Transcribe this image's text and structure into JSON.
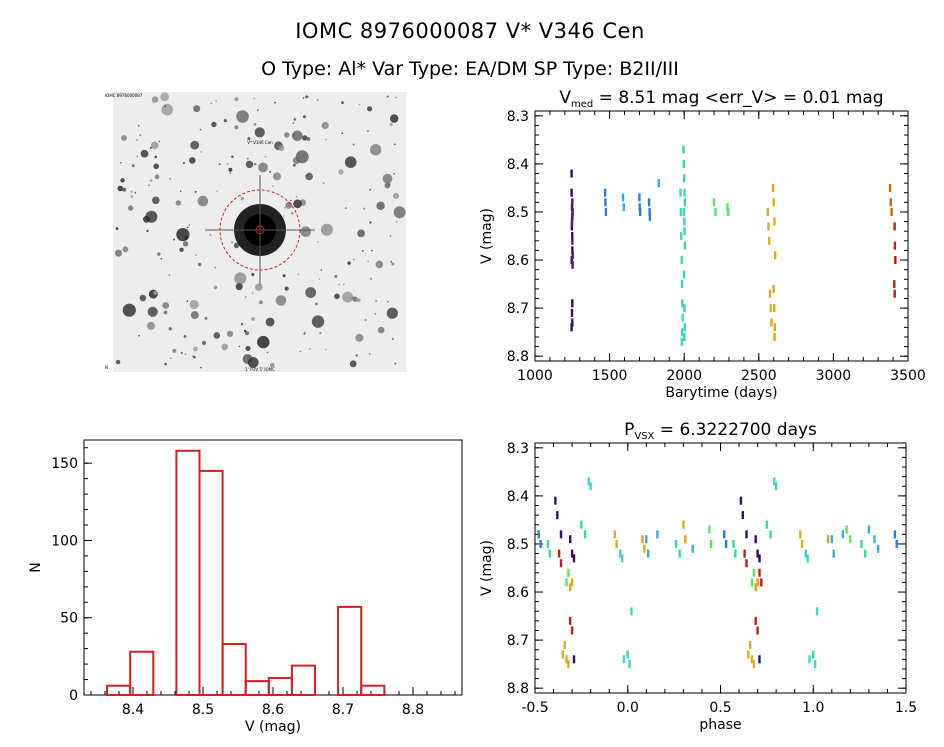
{
  "header": {
    "title_line1": "IOMC 8976000087    V* V346 Cen",
    "title_line2": "O Type: Al*  Var Type: EA/DM  SP Type: B2II/III"
  },
  "colors": {
    "axis": "#000000",
    "histogram": "#d42020",
    "circle": "#d42020",
    "epochs": [
      "#3a0a6b",
      "#4b1a8a",
      "#2a7fd6",
      "#2fb0e8",
      "#3dd6c8",
      "#2ee0a0",
      "#55e85a",
      "#9ee83a",
      "#d9b020",
      "#f0a010",
      "#e06010",
      "#c81818"
    ]
  },
  "chart_data": [
    {
      "id": "image",
      "type": "image",
      "description_labels": {
        "corner_top_left": "IOMC 8976000087",
        "center_top": "V* V346 Cen",
        "bottom_left": "N",
        "bottom_center": "1' FOV 5' IOMC"
      }
    },
    {
      "id": "lightcurve",
      "type": "scatter",
      "title": "V_med = 8.51 mag <err_V> = 0.01 mag",
      "title_main": "V",
      "title_sub": "med",
      "title_rest": " = 8.51 mag <err_V> = 0.01 mag",
      "xlabel": "Barytime (days)",
      "ylabel": "V (mag)",
      "xlim": [
        1000,
        3500
      ],
      "ylim": [
        8.81,
        8.29
      ],
      "xticks": [
        1000,
        1500,
        2000,
        2500,
        3000,
        3500
      ],
      "yticks": [
        8.3,
        8.4,
        8.5,
        8.6,
        8.7,
        8.8
      ],
      "series": [
        {
          "name": "epoch1",
          "color_index": 0,
          "points": [
            [
              1245,
              8.42
            ],
            [
              1245,
              8.46
            ],
            [
              1248,
              8.49
            ],
            [
              1250,
              8.51
            ],
            [
              1247,
              8.53
            ],
            [
              1249,
              8.55
            ],
            [
              1251,
              8.58
            ],
            [
              1246,
              8.6
            ],
            [
              1250,
              8.69
            ],
            [
              1248,
              8.71
            ],
            [
              1250,
              8.73
            ],
            [
              1245,
              8.74
            ]
          ]
        },
        {
          "name": "epoch2",
          "color_index": 1,
          "points": [
            [
              1250,
              8.48
            ],
            [
              1252,
              8.5
            ],
            [
              1248,
              8.52
            ],
            [
              1251,
              8.56
            ],
            [
              1253,
              8.59
            ],
            [
              1252,
              8.61
            ]
          ]
        },
        {
          "name": "epoch3",
          "color_index": 2,
          "points": [
            [
              1470,
              8.46
            ],
            [
              1472,
              8.48
            ],
            [
              1475,
              8.5
            ],
            [
              1700,
              8.47
            ],
            [
              1702,
              8.49
            ],
            [
              1705,
              8.5
            ],
            [
              1765,
              8.48
            ],
            [
              1768,
              8.5
            ],
            [
              1770,
              8.51
            ]
          ]
        },
        {
          "name": "epoch4",
          "color_index": 3,
          "points": [
            [
              1590,
              8.47
            ],
            [
              1595,
              8.49
            ],
            [
              1830,
              8.44
            ]
          ]
        },
        {
          "name": "epoch5",
          "color_index": 4,
          "points": [
            [
              1975,
              8.46
            ],
            [
              1978,
              8.5
            ],
            [
              1980,
              8.55
            ],
            [
              1983,
              8.6
            ],
            [
              1985,
              8.65
            ],
            [
              1987,
              8.69
            ],
            [
              1990,
              8.72
            ],
            [
              1986,
              8.75
            ],
            [
              1984,
              8.77
            ]
          ]
        },
        {
          "name": "epoch6",
          "color_index": 5,
          "points": [
            [
              1995,
              8.37
            ],
            [
              1997,
              8.4
            ],
            [
              2000,
              8.43
            ],
            [
              2002,
              8.46
            ],
            [
              2004,
              8.48
            ],
            [
              1998,
              8.5
            ],
            [
              2001,
              8.52
            ],
            [
              2003,
              8.54
            ],
            [
              2005,
              8.57
            ],
            [
              1999,
              8.63
            ],
            [
              2002,
              8.7
            ],
            [
              2004,
              8.74
            ],
            [
              2001,
              8.76
            ]
          ]
        },
        {
          "name": "epoch7",
          "color_index": 6,
          "points": [
            [
              2200,
              8.48
            ],
            [
              2210,
              8.5
            ],
            [
              2290,
              8.49
            ],
            [
              2295,
              8.5
            ]
          ]
        },
        {
          "name": "epoch8",
          "color_index": 8,
          "points": [
            [
              2560,
              8.5
            ],
            [
              2565,
              8.53
            ],
            [
              2570,
              8.56
            ],
            [
              2575,
              8.67
            ],
            [
              2580,
              8.7
            ],
            [
              2585,
              8.73
            ]
          ]
        },
        {
          "name": "epoch9",
          "color_index": 9,
          "points": [
            [
              2595,
              8.45
            ],
            [
              2600,
              8.48
            ],
            [
              2605,
              8.52
            ],
            [
              2610,
              8.59
            ],
            [
              2600,
              8.66
            ],
            [
              2603,
              8.7
            ],
            [
              2608,
              8.74
            ],
            [
              2605,
              8.76
            ]
          ]
        },
        {
          "name": "epoch10",
          "color_index": 10,
          "points": [
            [
              3380,
              8.45
            ],
            [
              3385,
              8.48
            ],
            [
              3390,
              8.5
            ]
          ]
        },
        {
          "name": "epoch11",
          "color_index": 11,
          "points": [
            [
              3410,
              8.53
            ],
            [
              3412,
              8.57
            ],
            [
              3415,
              8.6
            ],
            [
              3408,
              8.65
            ],
            [
              3411,
              8.67
            ]
          ]
        }
      ]
    },
    {
      "id": "histogram",
      "type": "bar",
      "xlabel": "V (mag)",
      "ylabel": "N",
      "xlim": [
        8.33,
        8.87
      ],
      "ylim": [
        0,
        165
      ],
      "xticks": [
        8.4,
        8.5,
        8.6,
        8.7,
        8.8
      ],
      "yticks": [
        0,
        50,
        100,
        150
      ],
      "bins": [
        {
          "left": 8.363,
          "right": 8.396,
          "value": 6
        },
        {
          "left": 8.396,
          "right": 8.429,
          "value": 28
        },
        {
          "left": 8.429,
          "right": 8.462,
          "value": 0
        },
        {
          "left": 8.462,
          "right": 8.495,
          "value": 158
        },
        {
          "left": 8.495,
          "right": 8.528,
          "value": 145
        },
        {
          "left": 8.528,
          "right": 8.561,
          "value": 33
        },
        {
          "left": 8.561,
          "right": 8.594,
          "value": 9
        },
        {
          "left": 8.594,
          "right": 8.627,
          "value": 11
        },
        {
          "left": 8.627,
          "right": 8.66,
          "value": 19
        },
        {
          "left": 8.66,
          "right": 8.693,
          "value": 0
        },
        {
          "left": 8.693,
          "right": 8.726,
          "value": 57
        },
        {
          "left": 8.726,
          "right": 8.759,
          "value": 6
        }
      ]
    },
    {
      "id": "phasecurve",
      "type": "scatter",
      "title": "P_VSX = 6.3222700 days",
      "title_main": "P",
      "title_sub": "VSX",
      "title_rest": " = 6.3222700 days",
      "xlabel": "phase",
      "ylabel": "V (mag)",
      "xlim": [
        -0.5,
        1.5
      ],
      "ylim": [
        8.81,
        8.29
      ],
      "xticks": [
        -0.5,
        0.0,
        0.5,
        1.0,
        1.5
      ],
      "yticks": [
        8.3,
        8.4,
        8.5,
        8.6,
        8.7,
        8.8
      ],
      "series": [
        {
          "name": "a",
          "color_index": 0,
          "points": [
            [
              -0.39,
              8.41
            ],
            [
              -0.38,
              8.44
            ],
            [
              -0.36,
              8.48
            ],
            [
              -0.31,
              8.49
            ],
            [
              -0.3,
              8.52
            ],
            [
              -0.29,
              8.53
            ],
            [
              0.61,
              8.41
            ],
            [
              0.62,
              8.44
            ],
            [
              0.64,
              8.48
            ],
            [
              0.69,
              8.49
            ],
            [
              0.7,
              8.52
            ],
            [
              0.71,
              8.53
            ],
            [
              -0.29,
              8.74
            ],
            [
              0.71,
              8.74
            ]
          ]
        },
        {
          "name": "b",
          "color_index": 2,
          "points": [
            [
              -0.48,
              8.48
            ],
            [
              -0.47,
              8.5
            ],
            [
              0.52,
              8.48
            ],
            [
              0.53,
              8.5
            ],
            [
              1.44,
              8.48
            ],
            [
              1.45,
              8.5
            ]
          ]
        },
        {
          "name": "c",
          "color_index": 4,
          "points": [
            [
              -0.21,
              8.37
            ],
            [
              -0.2,
              8.38
            ],
            [
              -0.04,
              8.52
            ],
            [
              -0.03,
              8.53
            ],
            [
              0.0,
              8.73
            ],
            [
              0.01,
              8.75
            ],
            [
              -0.02,
              8.74
            ],
            [
              0.02,
              8.64
            ],
            [
              0.79,
              8.37
            ],
            [
              0.8,
              8.38
            ],
            [
              0.96,
              8.52
            ],
            [
              0.97,
              8.53
            ],
            [
              1.0,
              8.73
            ],
            [
              1.01,
              8.75
            ],
            [
              0.98,
              8.74
            ],
            [
              1.02,
              8.64
            ]
          ]
        },
        {
          "name": "d",
          "color_index": 5,
          "points": [
            [
              -0.43,
              8.5
            ],
            [
              -0.42,
              8.52
            ],
            [
              -0.25,
              8.46
            ],
            [
              -0.23,
              8.48
            ],
            [
              0.26,
              8.5
            ],
            [
              0.28,
              8.52
            ],
            [
              0.57,
              8.5
            ],
            [
              0.58,
              8.52
            ],
            [
              0.75,
              8.46
            ],
            [
              0.77,
              8.48
            ],
            [
              1.26,
              8.5
            ],
            [
              1.28,
              8.52
            ]
          ]
        },
        {
          "name": "e",
          "color_index": 6,
          "points": [
            [
              -0.33,
              8.58
            ],
            [
              -0.32,
              8.56
            ],
            [
              0.44,
              8.47
            ],
            [
              0.45,
              8.5
            ],
            [
              0.67,
              8.58
            ],
            [
              0.68,
              8.56
            ],
            [
              1.18,
              8.47
            ],
            [
              1.2,
              8.49
            ]
          ]
        },
        {
          "name": "f",
          "color_index": 8,
          "points": [
            [
              -0.34,
              8.71
            ],
            [
              -0.33,
              8.74
            ],
            [
              -0.32,
              8.75
            ],
            [
              -0.35,
              8.73
            ],
            [
              0.66,
              8.71
            ],
            [
              0.67,
              8.74
            ],
            [
              0.68,
              8.75
            ],
            [
              0.65,
              8.73
            ],
            [
              -0.07,
              8.48
            ],
            [
              -0.06,
              8.5
            ],
            [
              0.93,
              8.48
            ],
            [
              0.94,
              8.5
            ]
          ]
        },
        {
          "name": "g",
          "color_index": 9,
          "points": [
            [
              -0.31,
              8.59
            ],
            [
              -0.3,
              8.58
            ],
            [
              0.3,
              8.46
            ],
            [
              0.31,
              8.49
            ],
            [
              0.69,
              8.59
            ],
            [
              0.7,
              8.58
            ],
            [
              0.08,
              8.49
            ],
            [
              0.09,
              8.51
            ],
            [
              1.08,
              8.49
            ]
          ]
        },
        {
          "name": "h",
          "color_index": 11,
          "points": [
            [
              -0.37,
              8.52
            ],
            [
              -0.36,
              8.54
            ],
            [
              -0.31,
              8.66
            ],
            [
              -0.3,
              8.68
            ],
            [
              0.63,
              8.52
            ],
            [
              0.64,
              8.54
            ],
            [
              0.69,
              8.66
            ],
            [
              0.7,
              8.68
            ],
            [
              0.71,
              8.56
            ],
            [
              0.72,
              8.58
            ]
          ]
        },
        {
          "name": "i",
          "color_index": 3,
          "points": [
            [
              0.1,
              8.49
            ],
            [
              0.11,
              8.52
            ],
            [
              0.16,
              8.48
            ],
            [
              1.1,
              8.49
            ],
            [
              1.11,
              8.52
            ],
            [
              1.16,
              8.48
            ],
            [
              0.35,
              8.51
            ],
            [
              1.35,
              8.51
            ],
            [
              1.3,
              8.47
            ],
            [
              1.33,
              8.49
            ]
          ]
        }
      ]
    }
  ]
}
